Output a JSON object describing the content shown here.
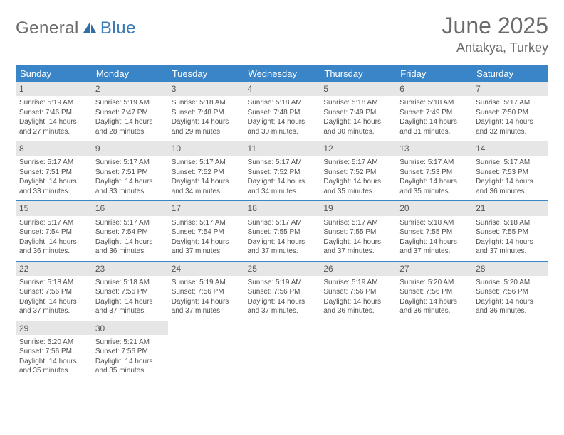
{
  "logo": {
    "general": "General",
    "blue": "Blue"
  },
  "title": "June 2025",
  "location": "Antakya, Turkey",
  "colors": {
    "header_bg": "#3a85c8",
    "header_text": "#ffffff",
    "daynum_bg": "#e6e6e6",
    "text": "#505050",
    "logo_gray": "#6a6a6a",
    "logo_blue": "#3a7ab8",
    "row_border": "#3a85c8",
    "page_bg": "#ffffff"
  },
  "dayHeaders": [
    "Sunday",
    "Monday",
    "Tuesday",
    "Wednesday",
    "Thursday",
    "Friday",
    "Saturday"
  ],
  "weeks": [
    [
      {
        "n": "1",
        "sr": "5:19 AM",
        "ss": "7:46 PM",
        "dl": "14 hours and 27 minutes."
      },
      {
        "n": "2",
        "sr": "5:19 AM",
        "ss": "7:47 PM",
        "dl": "14 hours and 28 minutes."
      },
      {
        "n": "3",
        "sr": "5:18 AM",
        "ss": "7:48 PM",
        "dl": "14 hours and 29 minutes."
      },
      {
        "n": "4",
        "sr": "5:18 AM",
        "ss": "7:48 PM",
        "dl": "14 hours and 30 minutes."
      },
      {
        "n": "5",
        "sr": "5:18 AM",
        "ss": "7:49 PM",
        "dl": "14 hours and 30 minutes."
      },
      {
        "n": "6",
        "sr": "5:18 AM",
        "ss": "7:49 PM",
        "dl": "14 hours and 31 minutes."
      },
      {
        "n": "7",
        "sr": "5:17 AM",
        "ss": "7:50 PM",
        "dl": "14 hours and 32 minutes."
      }
    ],
    [
      {
        "n": "8",
        "sr": "5:17 AM",
        "ss": "7:51 PM",
        "dl": "14 hours and 33 minutes."
      },
      {
        "n": "9",
        "sr": "5:17 AM",
        "ss": "7:51 PM",
        "dl": "14 hours and 33 minutes."
      },
      {
        "n": "10",
        "sr": "5:17 AM",
        "ss": "7:52 PM",
        "dl": "14 hours and 34 minutes."
      },
      {
        "n": "11",
        "sr": "5:17 AM",
        "ss": "7:52 PM",
        "dl": "14 hours and 34 minutes."
      },
      {
        "n": "12",
        "sr": "5:17 AM",
        "ss": "7:52 PM",
        "dl": "14 hours and 35 minutes."
      },
      {
        "n": "13",
        "sr": "5:17 AM",
        "ss": "7:53 PM",
        "dl": "14 hours and 35 minutes."
      },
      {
        "n": "14",
        "sr": "5:17 AM",
        "ss": "7:53 PM",
        "dl": "14 hours and 36 minutes."
      }
    ],
    [
      {
        "n": "15",
        "sr": "5:17 AM",
        "ss": "7:54 PM",
        "dl": "14 hours and 36 minutes."
      },
      {
        "n": "16",
        "sr": "5:17 AM",
        "ss": "7:54 PM",
        "dl": "14 hours and 36 minutes."
      },
      {
        "n": "17",
        "sr": "5:17 AM",
        "ss": "7:54 PM",
        "dl": "14 hours and 37 minutes."
      },
      {
        "n": "18",
        "sr": "5:17 AM",
        "ss": "7:55 PM",
        "dl": "14 hours and 37 minutes."
      },
      {
        "n": "19",
        "sr": "5:17 AM",
        "ss": "7:55 PM",
        "dl": "14 hours and 37 minutes."
      },
      {
        "n": "20",
        "sr": "5:18 AM",
        "ss": "7:55 PM",
        "dl": "14 hours and 37 minutes."
      },
      {
        "n": "21",
        "sr": "5:18 AM",
        "ss": "7:55 PM",
        "dl": "14 hours and 37 minutes."
      }
    ],
    [
      {
        "n": "22",
        "sr": "5:18 AM",
        "ss": "7:56 PM",
        "dl": "14 hours and 37 minutes."
      },
      {
        "n": "23",
        "sr": "5:18 AM",
        "ss": "7:56 PM",
        "dl": "14 hours and 37 minutes."
      },
      {
        "n": "24",
        "sr": "5:19 AM",
        "ss": "7:56 PM",
        "dl": "14 hours and 37 minutes."
      },
      {
        "n": "25",
        "sr": "5:19 AM",
        "ss": "7:56 PM",
        "dl": "14 hours and 37 minutes."
      },
      {
        "n": "26",
        "sr": "5:19 AM",
        "ss": "7:56 PM",
        "dl": "14 hours and 36 minutes."
      },
      {
        "n": "27",
        "sr": "5:20 AM",
        "ss": "7:56 PM",
        "dl": "14 hours and 36 minutes."
      },
      {
        "n": "28",
        "sr": "5:20 AM",
        "ss": "7:56 PM",
        "dl": "14 hours and 36 minutes."
      }
    ],
    [
      {
        "n": "29",
        "sr": "5:20 AM",
        "ss": "7:56 PM",
        "dl": "14 hours and 35 minutes."
      },
      {
        "n": "30",
        "sr": "5:21 AM",
        "ss": "7:56 PM",
        "dl": "14 hours and 35 minutes."
      },
      null,
      null,
      null,
      null,
      null
    ]
  ],
  "labels": {
    "sunrise": "Sunrise: ",
    "sunset": "Sunset: ",
    "daylight": "Daylight: "
  }
}
